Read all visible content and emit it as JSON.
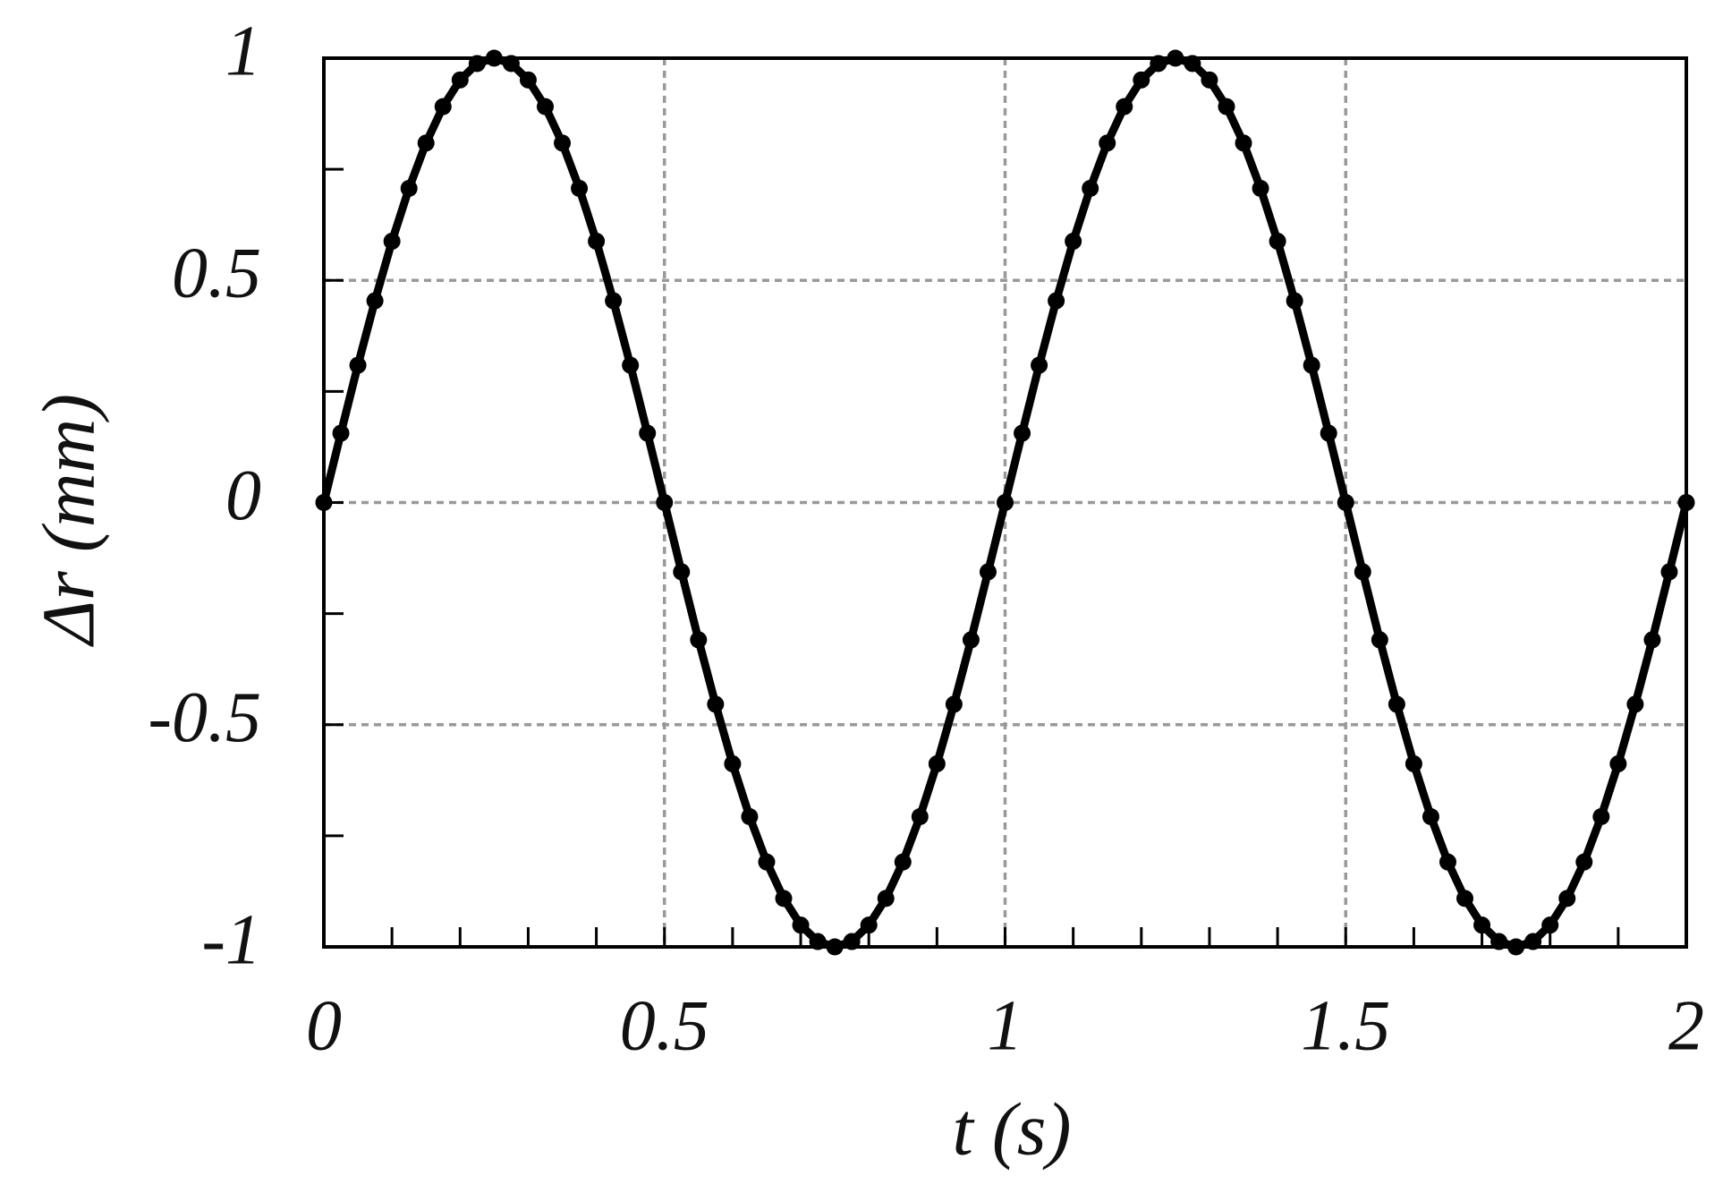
{
  "chart_data": {
    "type": "line",
    "x_label": "t (s)",
    "y_label": "Δr  (mm)",
    "x": [
      0,
      0.025,
      0.05,
      0.075,
      0.1,
      0.125,
      0.15,
      0.175,
      0.2,
      0.225,
      0.25,
      0.275,
      0.3,
      0.325,
      0.35,
      0.375,
      0.4,
      0.425,
      0.45,
      0.475,
      0.5,
      0.525,
      0.55,
      0.575,
      0.6,
      0.625,
      0.65,
      0.675,
      0.7,
      0.725,
      0.75,
      0.775,
      0.8,
      0.825,
      0.85,
      0.875,
      0.9,
      0.925,
      0.95,
      0.975,
      1,
      1.025,
      1.05,
      1.075,
      1.1,
      1.125,
      1.15,
      1.175,
      1.2,
      1.225,
      1.25,
      1.275,
      1.3,
      1.325,
      1.35,
      1.375,
      1.4,
      1.425,
      1.45,
      1.475,
      1.5,
      1.525,
      1.55,
      1.575,
      1.6,
      1.625,
      1.65,
      1.675,
      1.7,
      1.725,
      1.75,
      1.775,
      1.8,
      1.825,
      1.85,
      1.875,
      1.9,
      1.925,
      1.95,
      1.975,
      2
    ],
    "series": [
      {
        "color": "#000000",
        "marker": true,
        "values": [
          0,
          0.156,
          0.309,
          0.454,
          0.588,
          0.707,
          0.809,
          0.891,
          0.951,
          0.988,
          1,
          0.988,
          0.951,
          0.891,
          0.809,
          0.707,
          0.588,
          0.454,
          0.309,
          0.156,
          0,
          -0.156,
          -0.309,
          -0.454,
          -0.588,
          -0.707,
          -0.809,
          -0.891,
          -0.951,
          -0.988,
          -1,
          -0.988,
          -0.951,
          -0.891,
          -0.809,
          -0.707,
          -0.588,
          -0.454,
          -0.309,
          -0.156,
          0,
          0.156,
          0.309,
          0.454,
          0.588,
          0.707,
          0.809,
          0.891,
          0.951,
          0.988,
          1,
          0.988,
          0.951,
          0.891,
          0.809,
          0.707,
          0.588,
          0.454,
          0.309,
          0.156,
          0,
          -0.156,
          -0.309,
          -0.454,
          -0.588,
          -0.707,
          -0.809,
          -0.891,
          -0.951,
          -0.988,
          -1,
          -0.988,
          -0.951,
          -0.891,
          -0.809,
          -0.707,
          -0.588,
          -0.454,
          -0.309,
          -0.156,
          0
        ]
      }
    ],
    "xlim": [
      0,
      2
    ],
    "xticks": [
      0,
      0.5,
      1,
      1.5,
      2
    ],
    "xminorticks": [
      0.1,
      0.2,
      0.3,
      0.4,
      0.6,
      0.7,
      0.8,
      0.9,
      1.1,
      1.2,
      1.3,
      1.4,
      1.6,
      1.7,
      1.8,
      1.9
    ],
    "ylim": [
      -1,
      1
    ],
    "yticks": [
      -1,
      -0.5,
      0,
      0.5,
      1
    ],
    "yminorticks": [
      -0.75,
      -0.25,
      0.25,
      0.75
    ],
    "grid": true
  }
}
